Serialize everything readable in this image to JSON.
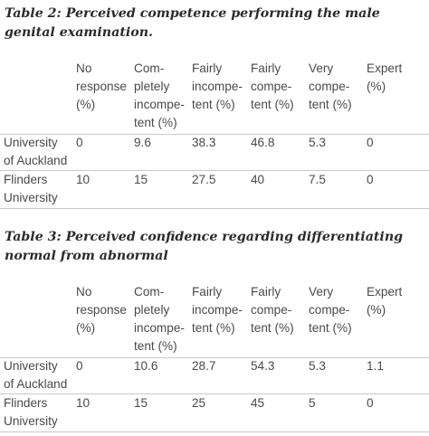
{
  "tables": [
    {
      "caption": "Table 2: Perceived competence performing the male genital examination.",
      "headers": [
        [
          "No",
          "response",
          "(%)"
        ],
        [
          "Com-",
          "pletely",
          "incompe-",
          "tent (%)"
        ],
        [
          "Fairly",
          "incompe-",
          "tent (%)"
        ],
        [
          "Fairly",
          "compe-",
          "tent (%)"
        ],
        [
          "Very",
          "compe-",
          "tent (%)"
        ],
        [
          "Expert",
          "(%)"
        ]
      ],
      "rows": [
        {
          "label": [
            "University",
            "of Auckland"
          ],
          "values": [
            "0",
            "9.6",
            "38.3",
            "46.8",
            "5.3",
            "0"
          ]
        },
        {
          "label": [
            "Flinders",
            "University"
          ],
          "values": [
            "10",
            "15",
            "27.5",
            "40",
            "7.5",
            "0"
          ]
        }
      ]
    },
    {
      "caption": "Table 3: Perceived confidence regarding differentiating normal from abnormal",
      "headers": [
        [
          "No",
          "response",
          "(%)"
        ],
        [
          "Com-",
          "pletely",
          "incompe-",
          "tent (%)"
        ],
        [
          "Fairly",
          "incompe-",
          "tent (%)"
        ],
        [
          "Fairly",
          "compe-",
          "tent (%)"
        ],
        [
          "Very",
          "compe-",
          "tent (%)"
        ],
        [
          "Expert",
          "(%)"
        ]
      ],
      "rows": [
        {
          "label": [
            "University",
            "of Auckland"
          ],
          "values": [
            "0",
            "10.6",
            "28.7",
            "54.3",
            "5.3",
            "1.1"
          ]
        },
        {
          "label": [
            "Flinders",
            "University"
          ],
          "values": [
            "10",
            "15",
            "25",
            "45",
            "5",
            "0"
          ]
        }
      ]
    }
  ]
}
